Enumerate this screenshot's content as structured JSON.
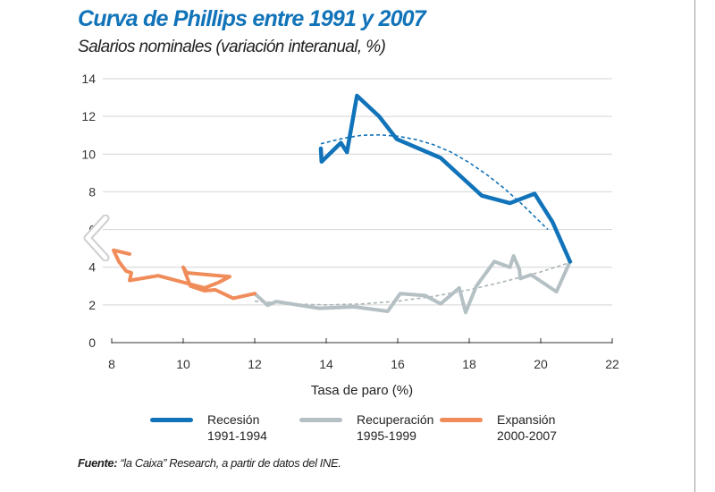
{
  "chart_data": {
    "type": "line",
    "title": "Curva de Phillips entre 1991 y 2007",
    "subtitle": "Salarios nominales (variación interanual, %)",
    "xlabel": "Tasa de paro (%)",
    "ylabel": "",
    "xlim": [
      8,
      22
    ],
    "ylim": [
      0,
      14
    ],
    "xticks": [
      "8",
      "10",
      "12",
      "14",
      "16",
      "18",
      "20",
      "22"
    ],
    "yticks": [
      "0",
      "2",
      "4",
      "6",
      "8",
      "10",
      "12",
      "14"
    ],
    "grid": "horizontal",
    "legend_position": "bottom",
    "series": [
      {
        "name": "Recesión 1991-1994",
        "label_line1": "Recesión",
        "label_line2": "1991-1994",
        "color": "#1173b9",
        "x": [
          13.85,
          13.87,
          14.41,
          14.58,
          14.86,
          15.48,
          15.97,
          17.2,
          18.35,
          19.14,
          19.83,
          20.33,
          20.82
        ],
        "y": [
          10.3,
          9.6,
          10.6,
          10.1,
          13.1,
          12.0,
          10.8,
          9.8,
          7.8,
          7.4,
          7.9,
          6.4,
          4.3
        ],
        "trend": {
          "x": [
            13.85,
            14.5,
            15.0,
            15.5,
            16.0,
            16.5,
            17.0,
            17.5,
            18.0,
            18.5,
            19.0,
            19.5,
            20.2
          ],
          "y": [
            10.55,
            10.85,
            11.0,
            11.02,
            10.95,
            10.78,
            10.5,
            10.1,
            9.55,
            8.9,
            8.15,
            7.3,
            6.0
          ]
        }
      },
      {
        "name": "Recuperación 1995-1999",
        "label_line1": "Recuperación",
        "label_line2": "1995-1999",
        "color": "#b5c0c4",
        "x": [
          20.82,
          20.44,
          19.73,
          19.43,
          19.4,
          19.24,
          19.14,
          18.7,
          18.2,
          17.9,
          17.72,
          17.2,
          16.76,
          16.07,
          15.72,
          14.78,
          13.8,
          12.6,
          12.36,
          12.0
        ],
        "y": [
          4.3,
          2.7,
          3.6,
          3.4,
          3.9,
          4.6,
          4.0,
          4.3,
          3.0,
          1.6,
          2.9,
          2.06,
          2.5,
          2.6,
          1.66,
          1.9,
          1.82,
          2.18,
          1.98,
          2.6
        ],
        "trend": {
          "x": [
            12.0,
            13.0,
            14.0,
            15.0,
            16.0,
            17.0,
            18.0,
            19.0,
            20.0,
            20.9
          ],
          "y": [
            2.2,
            2.05,
            2.0,
            2.05,
            2.2,
            2.45,
            2.8,
            3.25,
            3.75,
            4.3
          ]
        }
      },
      {
        "name": "Expansión 2000-2007",
        "label_line1": "Expansión",
        "label_line2": "2000-2007",
        "color": "#f08c5a",
        "x": [
          12.0,
          11.4,
          10.9,
          10.6,
          10.2,
          10.0,
          10.1,
          11.3,
          11.0,
          10.6,
          10.0,
          9.8,
          9.3,
          8.5,
          8.55,
          8.4,
          8.2,
          8.05,
          8.5
        ],
        "y": [
          2.6,
          2.35,
          2.8,
          2.75,
          3.0,
          4.0,
          3.7,
          3.5,
          3.2,
          2.9,
          3.2,
          3.3,
          3.55,
          3.3,
          3.7,
          3.8,
          4.3,
          4.9,
          4.7
        ]
      }
    ]
  },
  "source": {
    "label": "Fuente:",
    "text": " “la Caixa” Research, a partir de datos del INE."
  },
  "nav": {
    "prev_icon": "chevron-left-icon"
  }
}
